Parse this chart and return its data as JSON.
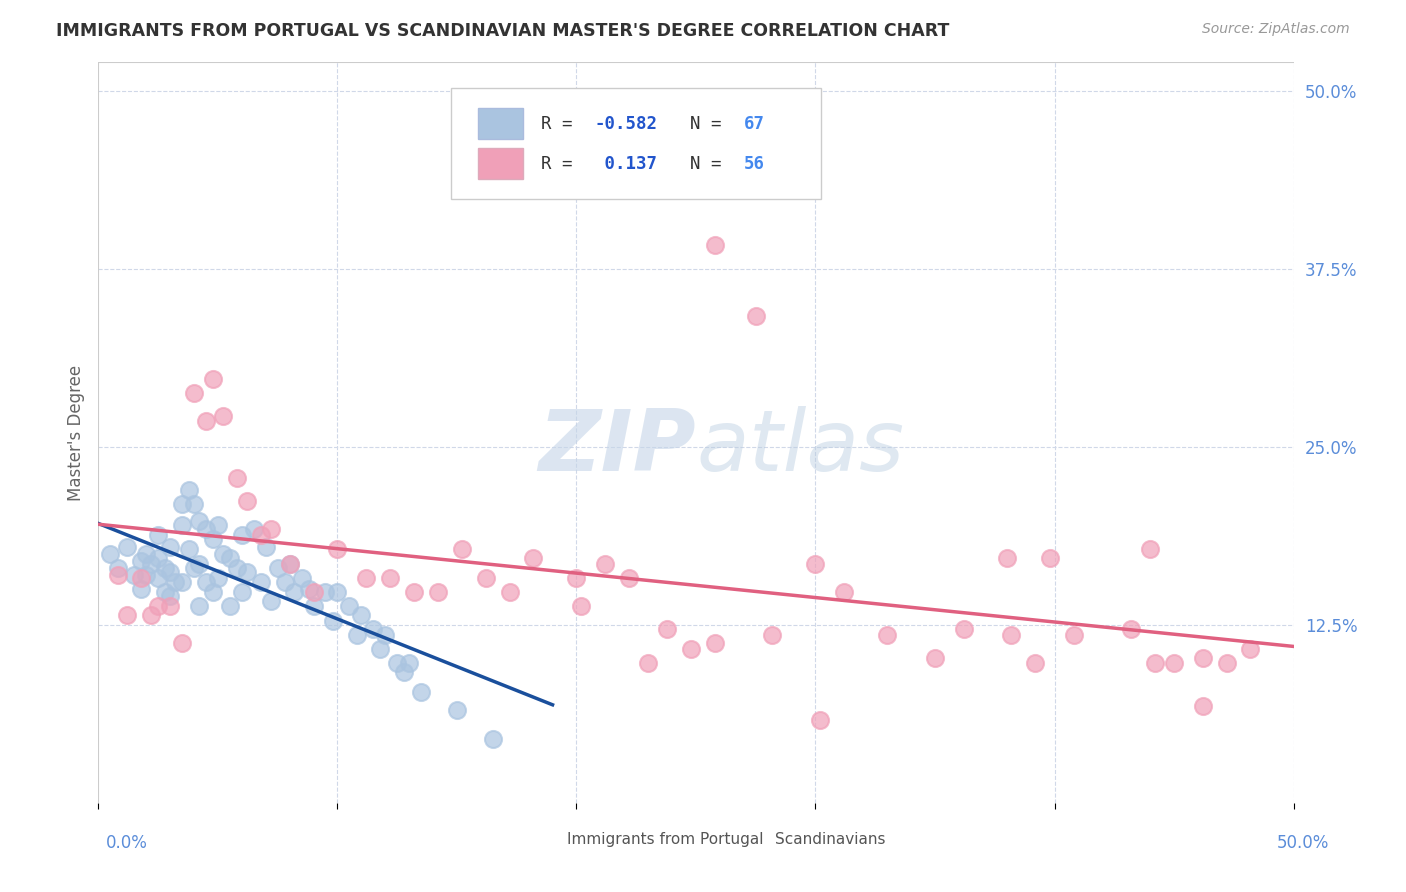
{
  "title": "IMMIGRANTS FROM PORTUGAL VS SCANDINAVIAN MASTER'S DEGREE CORRELATION CHART",
  "source": "Source: ZipAtlas.com",
  "ylabel": "Master's Degree",
  "ytick_values": [
    0.0,
    0.125,
    0.25,
    0.375,
    0.5
  ],
  "ytick_labels": [
    "",
    "12.5%",
    "25.0%",
    "37.5%",
    "50.0%"
  ],
  "xlim": [
    0.0,
    0.5
  ],
  "ylim": [
    0.0,
    0.52
  ],
  "blue_color": "#aac4e0",
  "blue_line_color": "#1a4f9c",
  "pink_color": "#f0a0b8",
  "pink_line_color": "#e06080",
  "watermark_zip": "ZIP",
  "watermark_atlas": "atlas",
  "blue_r": -0.582,
  "pink_r": 0.137,
  "blue_n": 67,
  "pink_n": 56,
  "legend_r1_val": "-0.582",
  "legend_r2_val": " 0.137",
  "legend_n1_val": "67",
  "legend_n2_val": "56",
  "blue_scatter_x": [
    0.005,
    0.008,
    0.012,
    0.015,
    0.018,
    0.018,
    0.02,
    0.02,
    0.022,
    0.025,
    0.025,
    0.025,
    0.028,
    0.028,
    0.03,
    0.03,
    0.03,
    0.032,
    0.035,
    0.035,
    0.035,
    0.038,
    0.038,
    0.04,
    0.04,
    0.042,
    0.042,
    0.042,
    0.045,
    0.045,
    0.048,
    0.048,
    0.05,
    0.05,
    0.052,
    0.055,
    0.055,
    0.058,
    0.06,
    0.06,
    0.062,
    0.065,
    0.068,
    0.07,
    0.072,
    0.075,
    0.078,
    0.08,
    0.082,
    0.085,
    0.088,
    0.09,
    0.095,
    0.098,
    0.1,
    0.105,
    0.108,
    0.11,
    0.115,
    0.118,
    0.12,
    0.125,
    0.128,
    0.13,
    0.135,
    0.15,
    0.165
  ],
  "blue_scatter_y": [
    0.175,
    0.165,
    0.18,
    0.16,
    0.17,
    0.15,
    0.175,
    0.16,
    0.168,
    0.188,
    0.172,
    0.158,
    0.165,
    0.148,
    0.18,
    0.162,
    0.145,
    0.155,
    0.21,
    0.195,
    0.155,
    0.22,
    0.178,
    0.21,
    0.165,
    0.198,
    0.168,
    0.138,
    0.192,
    0.155,
    0.185,
    0.148,
    0.195,
    0.158,
    0.175,
    0.172,
    0.138,
    0.165,
    0.188,
    0.148,
    0.162,
    0.192,
    0.155,
    0.18,
    0.142,
    0.165,
    0.155,
    0.168,
    0.148,
    0.158,
    0.15,
    0.138,
    0.148,
    0.128,
    0.148,
    0.138,
    0.118,
    0.132,
    0.122,
    0.108,
    0.118,
    0.098,
    0.092,
    0.098,
    0.078,
    0.065,
    0.045
  ],
  "pink_scatter_x": [
    0.008,
    0.012,
    0.018,
    0.022,
    0.025,
    0.03,
    0.035,
    0.04,
    0.045,
    0.048,
    0.052,
    0.058,
    0.062,
    0.068,
    0.072,
    0.08,
    0.09,
    0.1,
    0.112,
    0.122,
    0.132,
    0.142,
    0.152,
    0.162,
    0.172,
    0.182,
    0.2,
    0.202,
    0.212,
    0.222,
    0.23,
    0.238,
    0.248,
    0.258,
    0.282,
    0.3,
    0.312,
    0.33,
    0.35,
    0.362,
    0.382,
    0.392,
    0.398,
    0.408,
    0.432,
    0.442,
    0.45,
    0.462,
    0.472,
    0.482,
    0.258,
    0.275,
    0.38,
    0.44,
    0.462,
    0.302
  ],
  "pink_scatter_y": [
    0.16,
    0.132,
    0.158,
    0.132,
    0.138,
    0.138,
    0.112,
    0.288,
    0.268,
    0.298,
    0.272,
    0.228,
    0.212,
    0.188,
    0.192,
    0.168,
    0.148,
    0.178,
    0.158,
    0.158,
    0.148,
    0.148,
    0.178,
    0.158,
    0.148,
    0.172,
    0.158,
    0.138,
    0.168,
    0.158,
    0.098,
    0.122,
    0.108,
    0.112,
    0.118,
    0.168,
    0.148,
    0.118,
    0.102,
    0.122,
    0.118,
    0.098,
    0.172,
    0.118,
    0.122,
    0.098,
    0.098,
    0.102,
    0.098,
    0.108,
    0.392,
    0.342,
    0.172,
    0.178,
    0.068,
    0.058
  ],
  "grid_color": "#d0d8e8",
  "title_color": "#333333",
  "axis_label_color": "#5b8dd9",
  "legend_r_color": "#2255cc",
  "legend_n_color": "#4488ee"
}
